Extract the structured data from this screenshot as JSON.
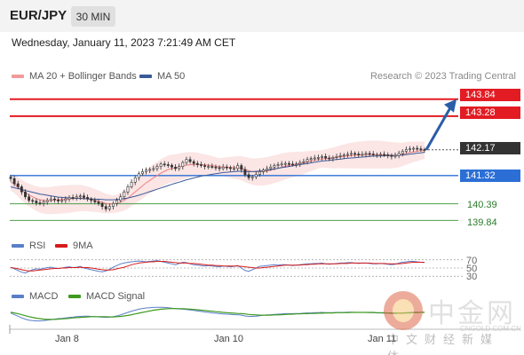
{
  "header": {
    "symbol": "EUR/JPY",
    "timeframe": "30 MIN",
    "datetime": "Wednesday, January 11, 2023 7:21:49 AM CET"
  },
  "legend": {
    "ma20": "MA 20 + Bollinger Bands",
    "ma50": "MA 50",
    "credit": "Research © 2023 Trading Central",
    "rsi": "RSI",
    "rsi_ma": "9MA",
    "macd": "MACD",
    "macd_signal": "MACD Signal"
  },
  "colors": {
    "resistance": "#e31b23",
    "pivot": "#2b6fd6",
    "support": "#4aa04a",
    "current": "#333333",
    "ma20": "#f08080",
    "ma50": "#3a5a9a",
    "arrow": "#2a5da8"
  },
  "chart_data": [
    {
      "type": "candlestick",
      "title": "EUR/JPY",
      "ylim": [
        139.5,
        144.3
      ],
      "x_ticks": [
        "Jan 8",
        "Jan 10",
        "Jan 11"
      ],
      "levels": [
        {
          "label": "143.84",
          "value": 143.84,
          "kind": "resistance"
        },
        {
          "label": "143.28",
          "value": 143.28,
          "kind": "resistance"
        },
        {
          "label": "142.17",
          "value": 142.17,
          "kind": "current"
        },
        {
          "label": "141.32",
          "value": 141.32,
          "kind": "pivot"
        },
        {
          "label": "140.39",
          "value": 140.39,
          "kind": "support"
        },
        {
          "label": "139.84",
          "value": 139.84,
          "kind": "support"
        }
      ],
      "close": [
        141.22,
        141.05,
        140.95,
        140.78,
        140.62,
        140.5,
        140.48,
        140.42,
        140.4,
        140.45,
        140.5,
        140.55,
        140.52,
        140.48,
        140.5,
        140.55,
        140.6,
        140.58,
        140.62,
        140.65,
        140.6,
        140.55,
        140.5,
        140.45,
        140.4,
        140.3,
        140.22,
        140.3,
        140.4,
        140.5,
        140.62,
        140.78,
        140.95,
        141.1,
        141.25,
        141.38,
        141.45,
        141.5,
        141.52,
        141.55,
        141.62,
        141.7,
        141.68,
        141.66,
        141.6,
        141.55,
        141.62,
        141.75,
        141.85,
        141.78,
        141.72,
        141.68,
        141.65,
        141.62,
        141.62,
        141.6,
        141.58,
        141.55,
        141.6,
        141.58,
        141.55,
        141.55,
        141.65,
        141.52,
        141.35,
        141.25,
        141.28,
        141.36,
        141.45,
        141.5,
        141.55,
        141.6,
        141.65,
        141.68,
        141.7,
        141.72,
        141.7,
        141.68,
        141.7,
        141.75,
        141.78,
        141.85,
        141.88,
        141.9,
        141.92,
        141.95,
        141.9,
        141.88,
        141.92,
        141.95,
        141.98,
        142.0,
        142.02,
        142.05,
        142.03,
        142.0,
        142.02,
        142.05,
        142.03,
        142.0,
        142.0,
        142.02,
        142.0,
        141.98,
        141.95,
        141.98,
        142.05,
        142.12,
        142.18,
        142.2,
        142.22,
        142.2,
        142.18,
        142.17
      ],
      "ma20": [
        141.1,
        141.05,
        140.95,
        140.85,
        140.75,
        140.68,
        140.62,
        140.56,
        140.52,
        140.5,
        140.49,
        140.5,
        140.51,
        140.52,
        140.53,
        140.54,
        140.55,
        140.56,
        140.57,
        140.58,
        140.57,
        140.55,
        140.53,
        140.5,
        140.47,
        140.43,
        140.4,
        140.38,
        140.38,
        140.4,
        140.44,
        140.5,
        140.58,
        140.68,
        140.78,
        140.88,
        140.98,
        141.08,
        141.16,
        141.24,
        141.32,
        141.4,
        141.46,
        141.52,
        141.55,
        141.57,
        141.6,
        141.63,
        141.66,
        141.68,
        141.69,
        141.69,
        141.68,
        141.67,
        141.66,
        141.65,
        141.63,
        141.61,
        141.6,
        141.6,
        141.59,
        141.58,
        141.58,
        141.56,
        141.52,
        141.48,
        141.45,
        141.44,
        141.44,
        141.45,
        141.47,
        141.5,
        141.53,
        141.56,
        141.6,
        141.63,
        141.66,
        141.68,
        141.7,
        141.72,
        141.74,
        141.77,
        141.8,
        141.82,
        141.85,
        141.87,
        141.88,
        141.89,
        141.9,
        141.92,
        141.94,
        141.95,
        141.97,
        141.98,
        141.99,
        142.0,
        142.0,
        142.01,
        142.01,
        142.01,
        142.01,
        142.01,
        142.0,
        142.0,
        141.99,
        141.99,
        142.0,
        142.02,
        142.05,
        142.08,
        142.1,
        142.12,
        142.14,
        142.15
      ],
      "ma50": [
        140.95,
        140.92,
        140.89,
        140.86,
        140.83,
        140.8,
        140.77,
        140.74,
        140.71,
        140.69,
        140.67,
        140.65,
        140.63,
        140.61,
        140.6,
        140.59,
        140.58,
        140.57,
        140.57,
        140.56,
        140.56,
        140.55,
        140.55,
        140.54,
        140.54,
        140.53,
        140.52,
        140.52,
        140.52,
        140.53,
        140.54,
        140.56,
        140.58,
        140.61,
        140.64,
        140.67,
        140.71,
        140.75,
        140.79,
        140.83,
        140.87,
        140.91,
        140.95,
        140.99,
        141.03,
        141.07,
        141.1,
        141.14,
        141.18,
        141.21,
        141.24,
        141.27,
        141.3,
        141.32,
        141.34,
        141.36,
        141.38,
        141.4,
        141.42,
        141.43,
        141.44,
        141.45,
        141.46,
        141.46,
        141.45,
        141.45,
        141.45,
        141.46,
        141.47,
        141.48,
        141.5,
        141.52,
        141.54,
        141.56,
        141.58,
        141.6,
        141.62,
        141.64,
        141.66,
        141.68,
        141.7,
        141.72,
        141.74,
        141.76,
        141.78,
        141.8,
        141.81,
        141.82,
        141.84,
        141.85,
        141.86,
        141.88,
        141.89,
        141.9,
        141.91,
        141.92,
        141.93,
        141.94,
        141.95,
        141.96,
        141.96,
        141.97,
        141.97,
        141.98,
        141.98,
        141.98,
        141.99,
        142.0,
        142.01,
        142.03,
        142.04,
        142.06,
        142.07,
        142.09
      ],
      "forecast": {
        "from": 142.17,
        "to": 143.84
      }
    },
    {
      "type": "line",
      "title": "RSI",
      "ylim": [
        20,
        80
      ],
      "y_ticks": [
        70,
        50,
        30
      ],
      "series": [
        {
          "name": "RSI",
          "values": [
            52,
            48,
            44,
            40,
            38,
            42,
            46,
            48,
            47,
            49,
            51,
            52,
            50,
            49,
            50,
            52,
            53,
            51,
            52,
            54,
            50,
            48,
            46,
            44,
            42,
            41,
            43,
            47,
            52,
            56,
            60,
            62,
            64,
            65,
            66,
            67,
            66,
            65,
            66,
            67,
            68,
            66,
            64,
            62,
            60,
            58,
            61,
            64,
            63,
            60,
            58,
            57,
            56,
            55,
            56,
            55,
            54,
            53,
            55,
            54,
            53,
            54,
            56,
            50,
            44,
            42,
            46,
            50,
            54,
            55,
            56,
            57,
            58,
            57,
            58,
            58,
            57,
            56,
            57,
            58,
            59,
            60,
            60,
            61,
            61,
            62,
            60,
            59,
            60,
            61,
            62,
            62,
            63,
            63,
            62,
            61,
            62,
            62,
            61,
            60,
            60,
            61,
            60,
            59,
            58,
            59,
            62,
            64,
            65,
            66,
            66,
            65,
            64,
            63
          ]
        },
        {
          "name": "9MA",
          "values": [
            51,
            50,
            48,
            46,
            44,
            43,
            43,
            44,
            45,
            46,
            47,
            48,
            49,
            49,
            50,
            50,
            51,
            51,
            51,
            52,
            51,
            51,
            50,
            49,
            47,
            46,
            45,
            45,
            46,
            48,
            50,
            52,
            55,
            58,
            60,
            62,
            63,
            64,
            65,
            65,
            66,
            66,
            66,
            65,
            64,
            63,
            62,
            62,
            62,
            61,
            61,
            60,
            59,
            58,
            57,
            57,
            56,
            56,
            55,
            55,
            55,
            55,
            55,
            54,
            53,
            52,
            51,
            50,
            50,
            51,
            52,
            53,
            54,
            55,
            56,
            57,
            57,
            57,
            57,
            57,
            58,
            58,
            59,
            59,
            60,
            60,
            60,
            60,
            60,
            60,
            61,
            61,
            61,
            62,
            62,
            62,
            62,
            62,
            62,
            61,
            61,
            61,
            61,
            60,
            60,
            60,
            60,
            61,
            62,
            63,
            64,
            64,
            64,
            64
          ]
        }
      ]
    },
    {
      "type": "line",
      "title": "MACD",
      "ylim": [
        -0.5,
        0.5
      ],
      "series": [
        {
          "name": "MACD",
          "values": [
            0.05,
            -0.02,
            -0.08,
            -0.15,
            -0.2,
            -0.24,
            -0.26,
            -0.27,
            -0.27,
            -0.26,
            -0.24,
            -0.22,
            -0.2,
            -0.18,
            -0.17,
            -0.15,
            -0.13,
            -0.12,
            -0.1,
            -0.09,
            -0.08,
            -0.08,
            -0.09,
            -0.1,
            -0.11,
            -0.12,
            -0.13,
            -0.12,
            -0.1,
            -0.07,
            -0.03,
            0.02,
            0.07,
            0.12,
            0.16,
            0.2,
            0.23,
            0.25,
            0.26,
            0.27,
            0.28,
            0.28,
            0.27,
            0.26,
            0.24,
            0.22,
            0.21,
            0.2,
            0.19,
            0.17,
            0.15,
            0.13,
            0.11,
            0.09,
            0.07,
            0.05,
            0.04,
            0.02,
            0.01,
            0.0,
            -0.01,
            -0.02,
            -0.02,
            -0.04,
            -0.07,
            -0.09,
            -0.09,
            -0.08,
            -0.06,
            -0.04,
            -0.03,
            -0.02,
            -0.01,
            0.0,
            0.01,
            0.02,
            0.02,
            0.02,
            0.03,
            0.03,
            0.04,
            0.05,
            0.05,
            0.06,
            0.06,
            0.07,
            0.06,
            0.06,
            0.06,
            0.07,
            0.07,
            0.07,
            0.08,
            0.08,
            0.07,
            0.07,
            0.07,
            0.07,
            0.06,
            0.06,
            0.05,
            0.05,
            0.04,
            0.04,
            0.03,
            0.03,
            0.04,
            0.05,
            0.06,
            0.07,
            0.08,
            0.08,
            0.08,
            0.08
          ]
        },
        {
          "name": "MACD Signal",
          "values": [
            0.08,
            0.05,
            0.02,
            -0.02,
            -0.06,
            -0.1,
            -0.13,
            -0.16,
            -0.18,
            -0.2,
            -0.21,
            -0.21,
            -0.21,
            -0.2,
            -0.19,
            -0.18,
            -0.17,
            -0.15,
            -0.14,
            -0.13,
            -0.12,
            -0.11,
            -0.1,
            -0.1,
            -0.1,
            -0.1,
            -0.1,
            -0.11,
            -0.11,
            -0.1,
            -0.09,
            -0.07,
            -0.05,
            -0.02,
            0.01,
            0.04,
            0.07,
            0.1,
            0.13,
            0.16,
            0.18,
            0.2,
            0.21,
            0.22,
            0.23,
            0.23,
            0.22,
            0.22,
            0.21,
            0.2,
            0.19,
            0.18,
            0.16,
            0.15,
            0.13,
            0.12,
            0.1,
            0.09,
            0.07,
            0.06,
            0.05,
            0.04,
            0.03,
            0.02,
            0.01,
            -0.01,
            -0.02,
            -0.03,
            -0.04,
            -0.04,
            -0.04,
            -0.04,
            -0.03,
            -0.03,
            -0.02,
            -0.01,
            0.0,
            0.0,
            0.01,
            0.01,
            0.02,
            0.02,
            0.03,
            0.03,
            0.04,
            0.04,
            0.05,
            0.05,
            0.05,
            0.06,
            0.06,
            0.06,
            0.06,
            0.07,
            0.07,
            0.07,
            0.07,
            0.07,
            0.07,
            0.07,
            0.06,
            0.06,
            0.06,
            0.05,
            0.05,
            0.05,
            0.04,
            0.04,
            0.05,
            0.05,
            0.06,
            0.06,
            0.07,
            0.07
          ]
        }
      ]
    }
  ],
  "watermark": {
    "big": "中金网",
    "small": "中文财经新媒体",
    "url": "CNGOLD.COM.CN"
  }
}
